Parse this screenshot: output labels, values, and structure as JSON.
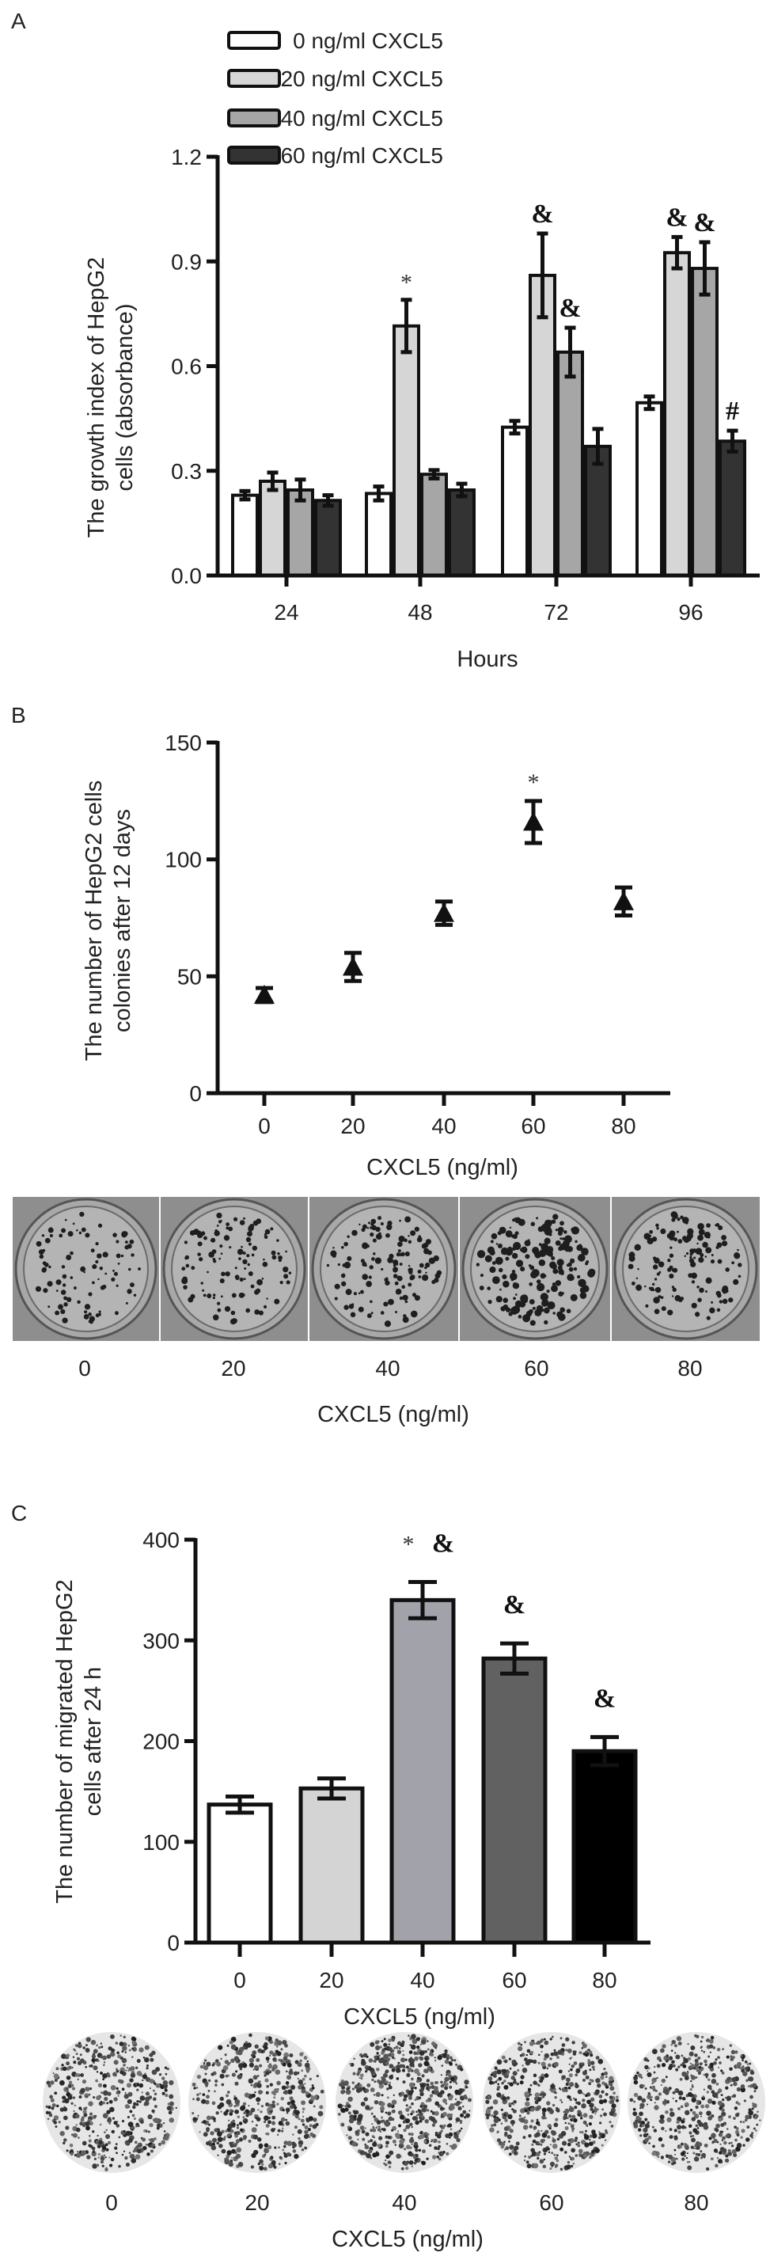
{
  "chart_data": [
    {
      "type": "bar",
      "panel_label": "A",
      "xlabel": "Hours",
      "ylabel_lines": [
        "The growth index of HepG2",
        "cells (absorbance)"
      ],
      "categories": [
        "24",
        "48",
        "72",
        "96"
      ],
      "ylim": [
        0,
        1.2
      ],
      "yticks": [
        "0.0",
        "0.3",
        "0.6",
        "0.9",
        "1.2"
      ],
      "legend_position": "top",
      "series": [
        {
          "name": "0 ng/ml CXCL5",
          "color": "#ffffff",
          "values": [
            0.23,
            0.235,
            0.425,
            0.495
          ],
          "errors": [
            0.012,
            0.02,
            0.018,
            0.018
          ]
        },
        {
          "name": "20 ng/ml CXCL5",
          "color": "#d6d6d6",
          "values": [
            0.27,
            0.715,
            0.86,
            0.925
          ],
          "errors": [
            0.025,
            0.075,
            0.12,
            0.045
          ]
        },
        {
          "name": "40 ng/ml CXCL5",
          "color": "#a6a6a6",
          "values": [
            0.245,
            0.29,
            0.64,
            0.88
          ],
          "errors": [
            0.03,
            0.012,
            0.07,
            0.075
          ]
        },
        {
          "name": "60 ng/ml CXCL5",
          "color": "#333333",
          "values": [
            0.215,
            0.245,
            0.37,
            0.385
          ],
          "errors": [
            0.015,
            0.018,
            0.05,
            0.03
          ]
        }
      ],
      "annotations": [
        {
          "category": "48",
          "series": 1,
          "text": "*"
        },
        {
          "category": "72",
          "series": 1,
          "text": "&"
        },
        {
          "category": "72",
          "series": 2,
          "text": "&"
        },
        {
          "category": "96",
          "series": 1,
          "text": "&"
        },
        {
          "category": "96",
          "series": 2,
          "text": "&"
        },
        {
          "category": "96",
          "series": 3,
          "text": "#"
        }
      ]
    },
    {
      "type": "scatter",
      "panel_label": "B",
      "xlabel": "CXCL5 (ng/ml)",
      "ylabel_lines": [
        "The number of HepG2 cells",
        "colonies after 12 days"
      ],
      "x": [
        "0",
        "20",
        "40",
        "60",
        "80"
      ],
      "values": [
        42,
        54,
        77,
        116,
        82
      ],
      "errors": [
        3,
        6,
        5,
        9,
        6
      ],
      "ylim": [
        0,
        150
      ],
      "yticks": [
        "0",
        "50",
        "100",
        "150"
      ],
      "annotations": [
        {
          "category": "60",
          "text": "*"
        }
      ],
      "image_labels": [
        "0",
        "20",
        "40",
        "60",
        "80"
      ],
      "image_xlabel": "CXCL5 (ng/ml)",
      "image_density": [
        0.35,
        0.5,
        0.6,
        0.95,
        0.6
      ]
    },
    {
      "type": "bar",
      "panel_label": "C",
      "xlabel": "CXCL5 (ng/ml)",
      "ylabel_lines": [
        "The number of migrated HepG2",
        "cells after 24 h"
      ],
      "categories": [
        "0",
        "20",
        "40",
        "60",
        "80"
      ],
      "values": [
        137,
        153,
        340,
        282,
        190
      ],
      "errors": [
        8,
        10,
        18,
        15,
        14
      ],
      "colors": [
        "#ffffff",
        "#d4d4d4",
        "#a2a2aa",
        "#616161",
        "#000000"
      ],
      "ylim": [
        0,
        400
      ],
      "yticks": [
        "0",
        "100",
        "200",
        "300",
        "400"
      ],
      "annotations": [
        {
          "category": "40",
          "text": "*"
        },
        {
          "category": "40",
          "text": "&"
        },
        {
          "category": "60",
          "text": "&"
        },
        {
          "category": "80",
          "text": "&"
        }
      ],
      "image_labels": [
        "0",
        "20",
        "40",
        "60",
        "80"
      ],
      "image_xlabel": "CXCL5 (ng/ml)",
      "image_density": [
        0.45,
        0.5,
        0.8,
        0.6,
        0.5
      ]
    }
  ]
}
